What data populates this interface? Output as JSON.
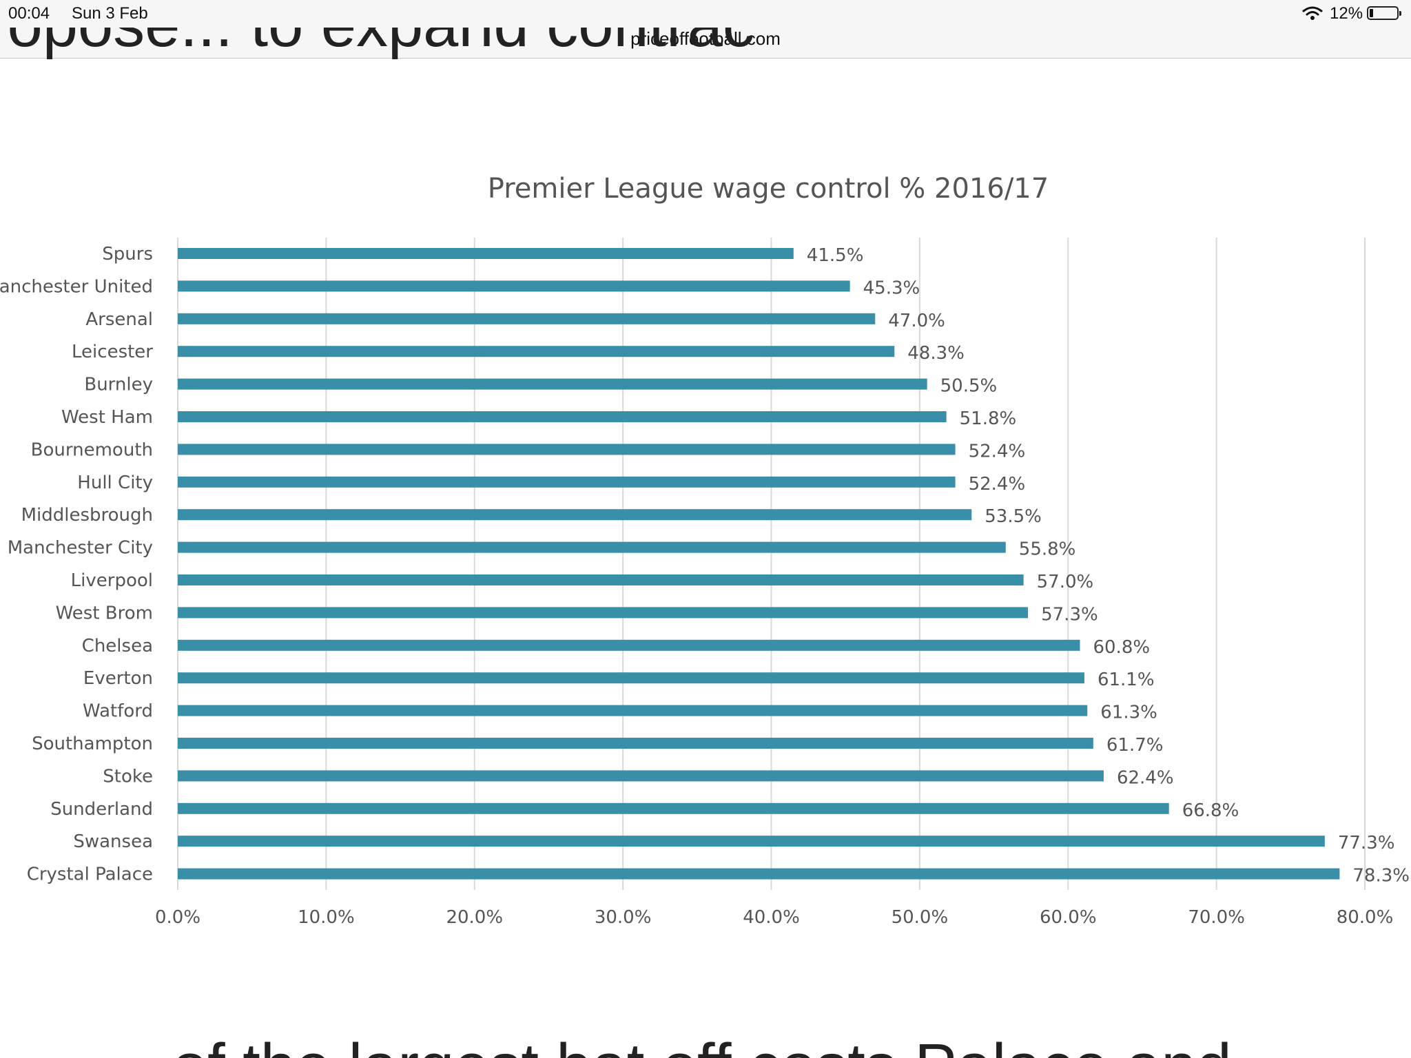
{
  "status_bar": {
    "time": "00:04",
    "date": "Sun 3 Feb",
    "url": "priceoffootball.com",
    "battery": "12%",
    "icons": [
      "wifi-icon",
      "battery-icon"
    ]
  },
  "article": {
    "top_fragment": "ropose... to expand contract",
    "bottom_fragment": "of the largest bat off costs Palace and ..."
  },
  "chart_data": {
    "type": "bar",
    "orientation": "horizontal",
    "title": "Premier League wage control % 2016/17",
    "categories": [
      "Spurs",
      "Manchester United",
      "Arsenal",
      "Leicester",
      "Burnley",
      "West Ham",
      "Bournemouth",
      "Hull City",
      "Middlesbrough",
      "Manchester City",
      "Liverpool",
      "West Brom",
      "Chelsea",
      "Everton",
      "Watford",
      "Southampton",
      "Stoke",
      "Sunderland",
      "Swansea",
      "Crystal Palace"
    ],
    "values": [
      41.5,
      45.3,
      47.0,
      48.3,
      50.5,
      51.8,
      52.4,
      52.4,
      53.5,
      55.8,
      57.0,
      57.3,
      60.8,
      61.1,
      61.3,
      61.7,
      62.4,
      66.8,
      77.3,
      78.3
    ],
    "value_labels": [
      "41.5%",
      "45.3%",
      "47.0%",
      "48.3%",
      "50.5%",
      "51.8%",
      "52.4%",
      "52.4%",
      "53.5%",
      "55.8%",
      "57.0%",
      "57.3%",
      "60.8%",
      "61.1%",
      "61.3%",
      "61.7%",
      "62.4%",
      "66.8%",
      "77.3%",
      "78.3%"
    ],
    "x_ticks": [
      "0.0%",
      "10.0%",
      "20.0%",
      "30.0%",
      "40.0%",
      "50.0%",
      "60.0%",
      "70.0%",
      "80.0%"
    ],
    "xlim": [
      0,
      80
    ],
    "bar_color": "#3a8fa8",
    "grid": true,
    "xlabel": "",
    "ylabel": ""
  }
}
